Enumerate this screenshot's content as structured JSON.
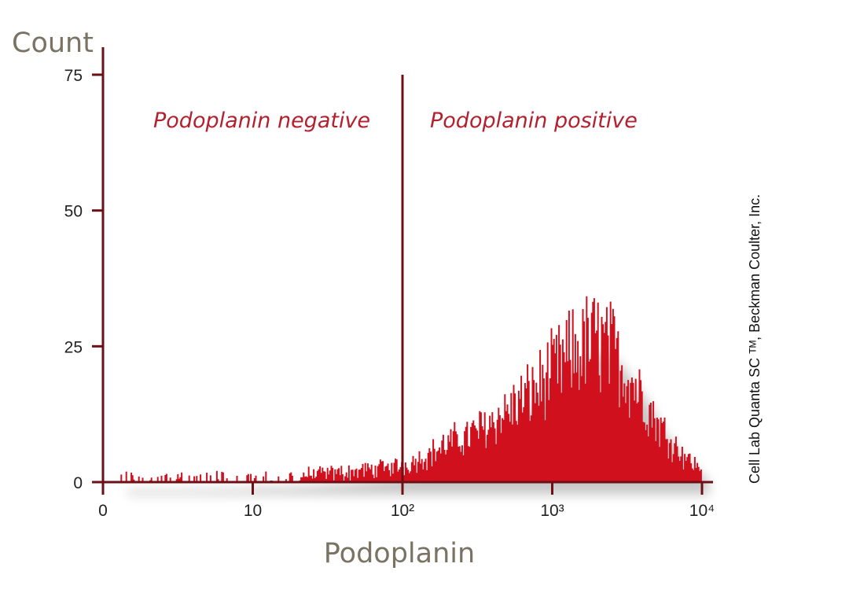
{
  "chart_data": {
    "type": "area",
    "ylabel": "Count",
    "xlabel": "Podoplanin",
    "x_scale": "log",
    "xlim": [
      1,
      10000
    ],
    "ylim": [
      0,
      75
    ],
    "x_ticks": [
      {
        "value": 1,
        "label": "0"
      },
      {
        "value": 10,
        "label": "10"
      },
      {
        "value": 100,
        "label": "10²"
      },
      {
        "value": 1000,
        "label": "10³"
      },
      {
        "value": 10000,
        "label": "10⁴"
      }
    ],
    "y_ticks": [
      {
        "value": 0,
        "label": "0"
      },
      {
        "value": 25,
        "label": "25"
      },
      {
        "value": 50,
        "label": "50"
      },
      {
        "value": 75,
        "label": "75"
      }
    ],
    "gate": {
      "x": 100
    },
    "regions": {
      "negative": "Podoplanin negative",
      "positive": "Podoplanin positive"
    },
    "credit": "Cell Lab Quanta SC ᵀᴹ, Beckman Coulter, Inc.",
    "grid": false,
    "series": [
      {
        "x": [
          1.3,
          2,
          3,
          5,
          8,
          10,
          15,
          20,
          30,
          50,
          70,
          100,
          150,
          200,
          300,
          500,
          700,
          1000,
          1300,
          1600,
          2000,
          2500,
          3000,
          4000,
          5000,
          7000,
          10000
        ],
        "values": [
          0.5,
          0.5,
          0.5,
          0.6,
          0.7,
          1,
          1,
          1.2,
          1.5,
          2,
          2.5,
          3,
          5,
          7,
          9,
          13,
          16,
          20,
          23,
          25,
          26,
          24,
          21,
          16,
          11,
          6,
          2
        ],
        "color": "#d1101e"
      }
    ],
    "colors": {
      "axis": "#6e0f16",
      "series": "#d1101e",
      "shadow": "#9a9a9a",
      "region_label": "#b3202e",
      "axis_title": "#7a7363"
    }
  }
}
